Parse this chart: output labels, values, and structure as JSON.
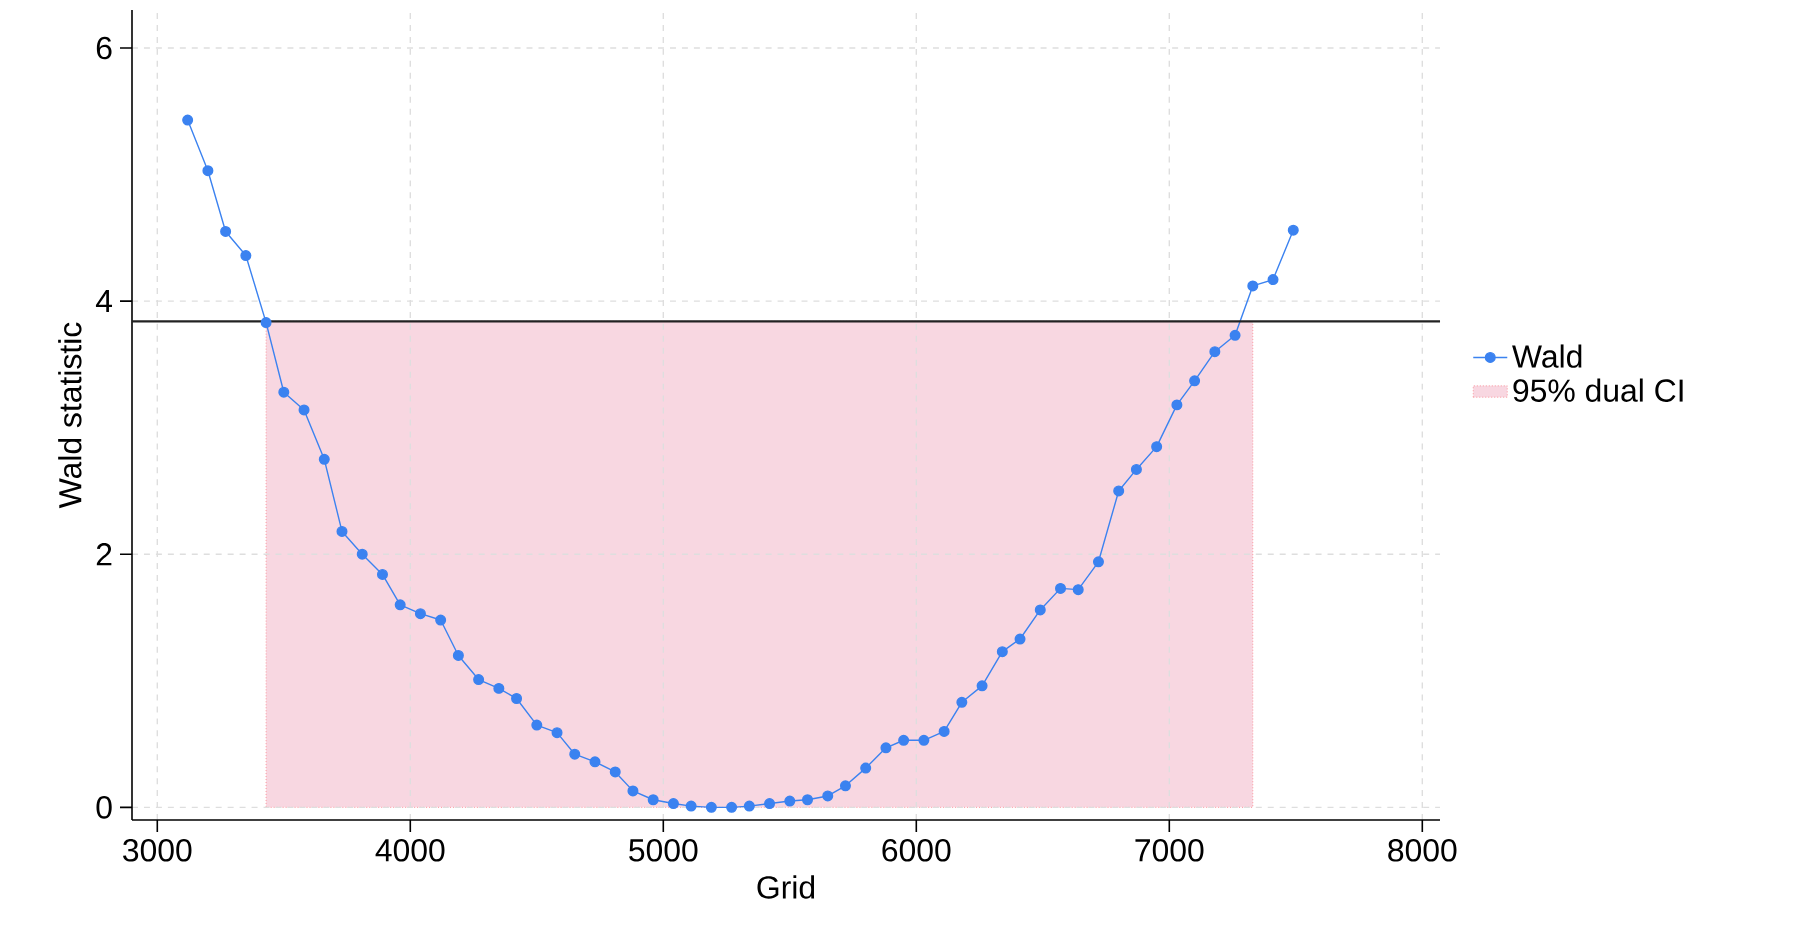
{
  "chart_data": {
    "type": "line",
    "xlabel": "Grid",
    "ylabel": "Wald statistic",
    "xlim": [
      2900,
      8070
    ],
    "ylim": [
      -0.1,
      6.3
    ],
    "xticks": [
      3000,
      4000,
      5000,
      6000,
      7000,
      8000
    ],
    "yticks": [
      0,
      2,
      4,
      6
    ],
    "grid": true,
    "legend": "right",
    "line_style": "solid",
    "series": [
      {
        "name": "Wald",
        "color": "#3b82f0",
        "marker": "circle",
        "x": [
          3120,
          3200,
          3270,
          3350,
          3430,
          3500,
          3580,
          3660,
          3730,
          3810,
          3890,
          3960,
          4040,
          4120,
          4190,
          4270,
          4350,
          4420,
          4500,
          4580,
          4650,
          4730,
          4810,
          4880,
          4960,
          5040,
          5110,
          5190,
          5270,
          5340,
          5420,
          5500,
          5570,
          5650,
          5720,
          5800,
          5880,
          5950,
          6030,
          6110,
          6180,
          6260,
          6340,
          6410,
          6490,
          6570,
          6640,
          6720,
          6800,
          6870,
          6950,
          7030,
          7100,
          7180,
          7260,
          7330,
          7410,
          7490
        ],
        "values": [
          5.43,
          5.03,
          4.55,
          4.36,
          3.83,
          3.28,
          3.14,
          2.75,
          2.18,
          2.0,
          1.84,
          1.6,
          1.53,
          1.48,
          1.2,
          1.01,
          0.94,
          0.86,
          0.65,
          0.59,
          0.42,
          0.36,
          0.28,
          0.13,
          0.06,
          0.03,
          0.01,
          0.0,
          0.0,
          0.01,
          0.03,
          0.05,
          0.06,
          0.09,
          0.17,
          0.31,
          0.47,
          0.53,
          0.53,
          0.6,
          0.83,
          0.96,
          1.23,
          1.33,
          1.56,
          1.73,
          1.72,
          1.94,
          2.5,
          2.67,
          2.85,
          3.18,
          3.37,
          3.6,
          3.73,
          4.12,
          4.17,
          4.56
        ]
      },
      {
        "name": "95% dual CI",
        "type": "area",
        "color": "#f8d7e1",
        "x": [
          3430,
          7330
        ],
        "values": [
          3.84,
          3.84
        ]
      }
    ],
    "ref_lines": [
      {
        "axis": "y",
        "value": 3.84,
        "color": "#222222"
      }
    ]
  }
}
